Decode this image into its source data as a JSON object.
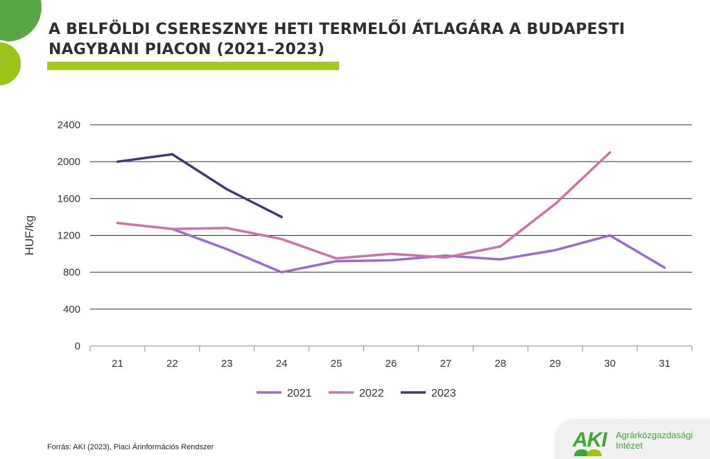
{
  "header": {
    "title_line1": "A BELFÖLDI CSERESZNYE HETI TERMELŐI ÁTLAGÁRA A BUDAPESTI",
    "title_line2": "NAGYBANI PIACON (2021–2023)"
  },
  "footer": {
    "source": "Forrás: AKI (2023), Piaci Árinformációs Rendszer",
    "logo_mark": "AKI",
    "logo_line1": "Agrárközgazdasági",
    "logo_line2": "Intézet"
  },
  "chart_data": {
    "type": "line",
    "title": "A BELFÖLDI CSERESZNYE HETI TERMELŐI ÁTLAGÁRA A BUDAPESTI NAGYBANI PIACON (2021–2023)",
    "xlabel": "",
    "ylabel": "HUF/kg",
    "categories": [
      "21",
      "22",
      "23",
      "24",
      "25",
      "26",
      "27",
      "28",
      "29",
      "30",
      "31"
    ],
    "yticks": [
      0,
      400,
      800,
      1200,
      1600,
      2000,
      2400
    ],
    "ylim": [
      0,
      2400
    ],
    "grid": true,
    "legend_position": "bottom",
    "series": [
      {
        "name": "2021",
        "color": "#9a6bcb",
        "values": [
          null,
          1270,
          1050,
          800,
          920,
          930,
          980,
          940,
          1040,
          1200,
          850
        ]
      },
      {
        "name": "2022",
        "color": "#cc72a9",
        "values": [
          1335,
          1270,
          1280,
          1160,
          950,
          1000,
          960,
          1080,
          1540,
          2100,
          null
        ]
      },
      {
        "name": "2023",
        "color": "#3f3a6d",
        "values": [
          2000,
          2080,
          1700,
          1400,
          null,
          null,
          null,
          null,
          null,
          null,
          null
        ]
      }
    ]
  }
}
